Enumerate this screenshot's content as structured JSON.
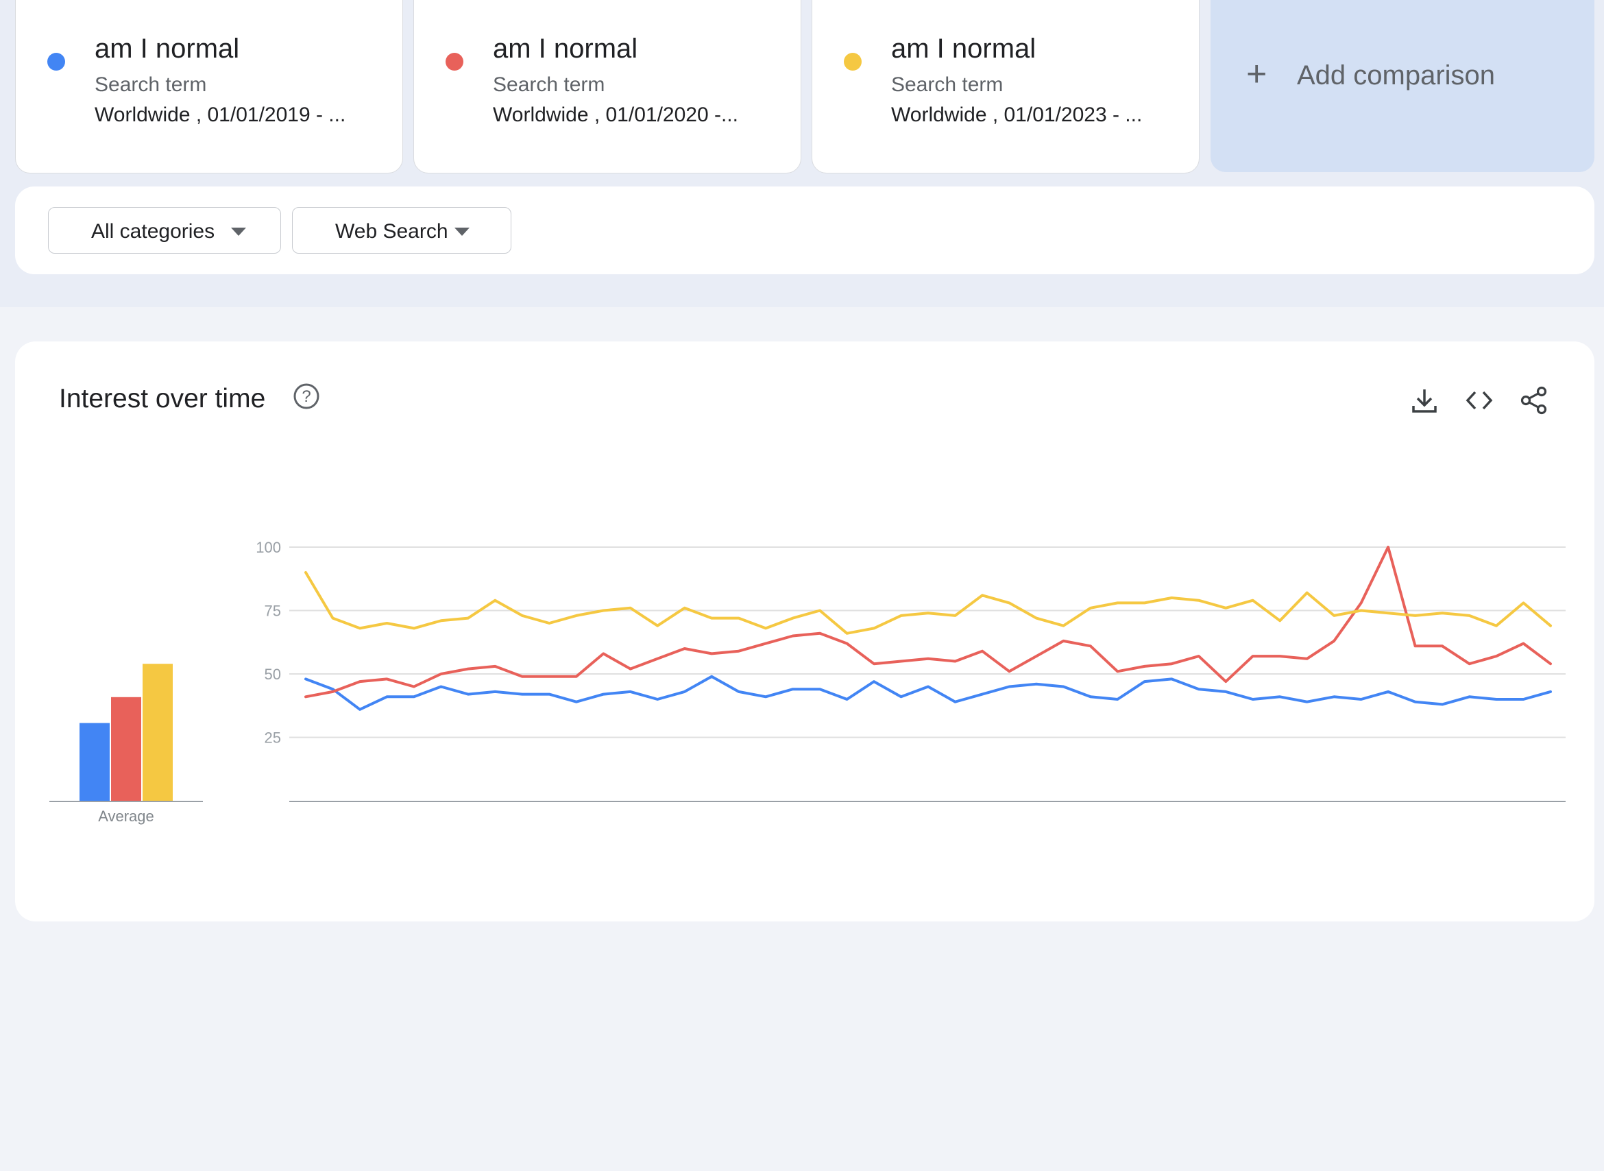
{
  "terms": [
    {
      "name": "am I normal",
      "subtitle": "Search term",
      "info": "Worldwide , 01/01/2019 - ...",
      "color": "#4285f4"
    },
    {
      "name": "am I normal",
      "subtitle": "Search term",
      "info": "Worldwide , 01/01/2020 -...",
      "color": "#e8615a"
    },
    {
      "name": "am I normal",
      "subtitle": "Search term",
      "info": "Worldwide , 01/01/2023 - ...",
      "color": "#f5c842"
    }
  ],
  "add_comparison": {
    "label": "Add comparison",
    "icon": "plus-icon"
  },
  "filters": {
    "category": "All categories",
    "search_type": "Web Search"
  },
  "chart_section": {
    "title": "Interest over time",
    "icons": [
      "help-icon",
      "download-icon",
      "embed-code-icon",
      "share-icon"
    ]
  },
  "chart_data": [
    {
      "type": "bar",
      "categories": [
        "Average"
      ],
      "series": [
        {
          "name": "am I normal",
          "values": [
            42
          ],
          "color": "#4285f4"
        },
        {
          "name": "am I normal",
          "values": [
            56
          ],
          "color": "#e8615a"
        },
        {
          "name": "am I normal",
          "values": [
            74
          ],
          "color": "#f5c842"
        }
      ],
      "xlabel": "Average",
      "ylim": [
        0,
        100
      ]
    },
    {
      "type": "line",
      "y_ticks": [
        25,
        50,
        75,
        100
      ],
      "ylim": [
        0,
        100
      ],
      "grid": true,
      "series": [
        {
          "name": "am I normal",
          "color": "#4285f4",
          "values": [
            48,
            44,
            36,
            41,
            41,
            45,
            42,
            43,
            42,
            42,
            39,
            42,
            43,
            40,
            43,
            49,
            43,
            41,
            44,
            44,
            40,
            47,
            41,
            45,
            39,
            42,
            45,
            46,
            45,
            41,
            40,
            47,
            48,
            44,
            43,
            40,
            41,
            39,
            41,
            40,
            43,
            39,
            38,
            41,
            40,
            40,
            43
          ]
        },
        {
          "name": "am I normal",
          "color": "#e8615a",
          "values": [
            41,
            43,
            47,
            48,
            45,
            50,
            52,
            53,
            49,
            49,
            49,
            58,
            52,
            56,
            60,
            58,
            59,
            62,
            65,
            66,
            62,
            54,
            55,
            56,
            55,
            59,
            51,
            57,
            63,
            61,
            51,
            53,
            54,
            57,
            47,
            57,
            57,
            56,
            63,
            78,
            100,
            61,
            61,
            54,
            57,
            62,
            54
          ]
        },
        {
          "name": "am I normal",
          "color": "#f5c842",
          "values": [
            90,
            72,
            68,
            70,
            68,
            71,
            72,
            79,
            73,
            70,
            73,
            75,
            76,
            69,
            76,
            72,
            72,
            68,
            72,
            75,
            66,
            68,
            73,
            74,
            73,
            81,
            78,
            72,
            69,
            76,
            78,
            78,
            80,
            79,
            76,
            79,
            71,
            82,
            73,
            75,
            74,
            73,
            74,
            73,
            69,
            78,
            69
          ]
        }
      ]
    }
  ]
}
